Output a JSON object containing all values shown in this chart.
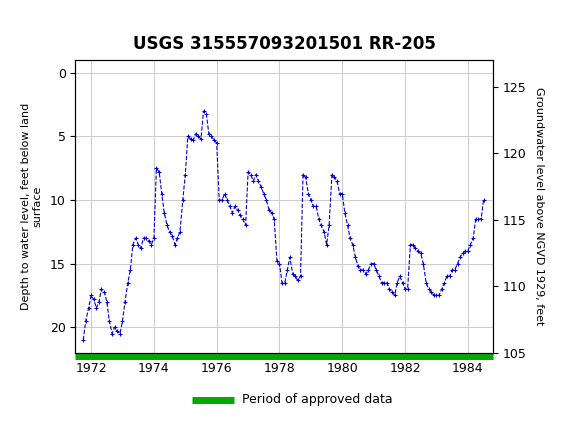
{
  "title": "USGS 315557093201501 RR-205",
  "ylabel_left": "Depth to water level, feet below land\nsurface",
  "ylabel_right": "Groundwater level above NGVD 1929, feet",
  "ylim_left": [
    22,
    -1
  ],
  "ylim_right": [
    105,
    127
  ],
  "yticks_left": [
    0,
    5,
    10,
    15,
    20
  ],
  "yticks_right": [
    105,
    110,
    115,
    120,
    125
  ],
  "xlim": [
    1971.5,
    1984.8
  ],
  "xticks": [
    1972,
    1974,
    1976,
    1978,
    1980,
    1982,
    1984
  ],
  "line_color": "#0000cc",
  "marker": "+",
  "linestyle": "--",
  "green_bar_color": "#00aa00",
  "header_color": "#006633",
  "background_color": "#ffffff",
  "grid_color": "#cccccc",
  "legend_label": "Period of approved data",
  "data_x": [
    1971.75,
    1971.83,
    1971.92,
    1972.0,
    1972.08,
    1972.17,
    1972.25,
    1972.33,
    1972.42,
    1972.5,
    1972.58,
    1972.67,
    1972.75,
    1972.83,
    1972.92,
    1973.0,
    1973.08,
    1973.17,
    1973.25,
    1973.33,
    1973.42,
    1973.5,
    1973.58,
    1973.67,
    1973.75,
    1973.83,
    1973.92,
    1974.0,
    1974.08,
    1974.17,
    1974.25,
    1974.33,
    1974.42,
    1974.5,
    1974.58,
    1974.67,
    1974.75,
    1974.83,
    1974.92,
    1975.0,
    1975.08,
    1975.17,
    1975.25,
    1975.33,
    1975.42,
    1975.5,
    1975.58,
    1975.67,
    1975.75,
    1975.83,
    1975.92,
    1976.0,
    1976.08,
    1976.17,
    1976.25,
    1976.33,
    1976.42,
    1976.5,
    1976.58,
    1976.67,
    1976.75,
    1976.83,
    1976.92,
    1977.0,
    1977.08,
    1977.17,
    1977.25,
    1977.33,
    1977.42,
    1977.5,
    1977.58,
    1977.67,
    1977.75,
    1977.83,
    1977.92,
    1978.0,
    1978.08,
    1978.17,
    1978.25,
    1978.33,
    1978.42,
    1978.5,
    1978.58,
    1978.67,
    1978.75,
    1978.83,
    1978.92,
    1979.0,
    1979.08,
    1979.17,
    1979.25,
    1979.33,
    1979.42,
    1979.5,
    1979.58,
    1979.67,
    1979.75,
    1979.83,
    1979.92,
    1980.0,
    1980.08,
    1980.17,
    1980.25,
    1980.33,
    1980.42,
    1980.5,
    1980.58,
    1980.67,
    1980.75,
    1980.83,
    1980.92,
    1981.0,
    1981.08,
    1981.17,
    1981.25,
    1981.33,
    1981.42,
    1981.5,
    1981.58,
    1981.67,
    1981.75,
    1981.83,
    1981.92,
    1982.0,
    1982.08,
    1982.17,
    1982.25,
    1982.33,
    1982.42,
    1982.5,
    1982.58,
    1982.67,
    1982.75,
    1982.83,
    1982.92,
    1983.0,
    1983.08,
    1983.17,
    1983.25,
    1983.33,
    1983.42,
    1983.5,
    1983.58,
    1983.67,
    1983.75,
    1983.83,
    1983.92,
    1984.0,
    1984.08,
    1984.17,
    1984.25,
    1984.33,
    1984.42,
    1984.5
  ],
  "data_y": [
    21.0,
    19.5,
    18.5,
    17.5,
    17.8,
    18.5,
    18.0,
    17.0,
    17.2,
    18.0,
    19.5,
    20.5,
    20.0,
    20.3,
    20.5,
    19.5,
    18.0,
    16.5,
    15.5,
    13.5,
    13.0,
    13.5,
    13.8,
    13.0,
    13.0,
    13.2,
    13.5,
    13.0,
    7.5,
    7.8,
    9.5,
    11.0,
    12.0,
    12.5,
    12.8,
    13.5,
    13.0,
    12.5,
    10.0,
    8.0,
    5.0,
    5.2,
    5.3,
    4.8,
    5.0,
    5.2,
    3.0,
    3.2,
    4.8,
    5.0,
    5.3,
    5.5,
    10.0,
    10.0,
    9.5,
    10.0,
    10.5,
    11.0,
    10.5,
    10.8,
    11.2,
    11.5,
    12.0,
    7.8,
    8.0,
    8.5,
    8.0,
    8.5,
    9.0,
    9.5,
    10.0,
    10.8,
    11.0,
    11.5,
    14.8,
    15.0,
    16.5,
    16.5,
    15.5,
    14.5,
    15.8,
    16.0,
    16.3,
    16.0,
    8.0,
    8.2,
    9.5,
    10.0,
    10.5,
    10.5,
    11.5,
    12.0,
    12.5,
    13.5,
    12.0,
    8.0,
    8.2,
    8.5,
    9.5,
    9.5,
    11.0,
    12.0,
    13.0,
    13.5,
    14.5,
    15.2,
    15.5,
    15.5,
    15.8,
    15.5,
    15.0,
    15.0,
    15.5,
    16.0,
    16.5,
    16.5,
    16.5,
    17.0,
    17.2,
    17.5,
    16.5,
    16.0,
    16.5,
    17.0,
    17.0,
    13.5,
    13.5,
    13.8,
    14.0,
    14.2,
    15.0,
    16.5,
    17.0,
    17.2,
    17.5,
    17.5,
    17.5,
    17.0,
    16.5,
    16.0,
    16.0,
    15.5,
    15.5,
    15.0,
    14.5,
    14.2,
    14.0,
    14.0,
    13.5,
    13.0,
    11.5,
    11.5,
    11.5,
    10.0
  ]
}
